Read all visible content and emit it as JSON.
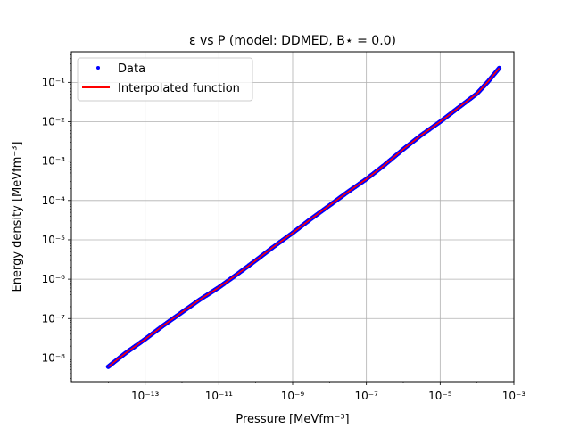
{
  "chart_data": {
    "type": "line",
    "title": "ε vs P (model: DDMED, B⋆ = 0.0)",
    "xlabel": "Pressure [MeVfm⁻³]",
    "ylabel": "Energy density [MeVfm⁻³]",
    "xscale": "log",
    "yscale": "log",
    "xlim": [
      1e-15,
      0.001
    ],
    "ylim": [
      2.5e-09,
      0.6
    ],
    "xticks": [
      {
        "value": 1e-13,
        "label": "10⁻¹³"
      },
      {
        "value": 1e-11,
        "label": "10⁻¹¹"
      },
      {
        "value": 1e-09,
        "label": "10⁻⁹"
      },
      {
        "value": 1e-07,
        "label": "10⁻⁷"
      },
      {
        "value": 1e-05,
        "label": "10⁻⁵"
      },
      {
        "value": 0.001,
        "label": "10⁻³"
      }
    ],
    "yticks": [
      {
        "value": 1e-08,
        "label": "10⁻⁸"
      },
      {
        "value": 1e-07,
        "label": "10⁻⁷"
      },
      {
        "value": 1e-06,
        "label": "10⁻⁶"
      },
      {
        "value": 1e-05,
        "label": "10⁻⁵"
      },
      {
        "value": 0.0001,
        "label": "10⁻⁴"
      },
      {
        "value": 0.001,
        "label": "10⁻³"
      },
      {
        "value": 0.01,
        "label": "10⁻²"
      },
      {
        "value": 0.1,
        "label": "10⁻¹"
      }
    ],
    "grid": true,
    "legend": {
      "placement": "upper-left"
    },
    "series": [
      {
        "name": "Data",
        "style": "points",
        "color": "#0000ff",
        "x": [
          1e-14,
          3e-14,
          1e-13,
          3e-13,
          1e-12,
          3e-12,
          1e-11,
          3e-11,
          1e-10,
          3e-10,
          1e-09,
          3e-09,
          1e-08,
          3e-08,
          1e-07,
          3e-07,
          1e-06,
          3e-06,
          1e-05,
          3e-05,
          0.0001,
          0.0002,
          0.0004
        ],
        "y": [
          6e-09,
          1.35e-08,
          3e-08,
          6.5e-08,
          1.45e-07,
          3e-07,
          6.2e-07,
          1.3e-06,
          3e-06,
          6.6e-06,
          1.5e-05,
          3.3e-05,
          7.5e-05,
          0.00016,
          0.00035,
          0.00078,
          0.002,
          0.0045,
          0.01,
          0.022,
          0.052,
          0.105,
          0.23
        ]
      },
      {
        "name": "Interpolated function",
        "style": "line",
        "color": "#ff0000",
        "x": [
          1e-14,
          3e-14,
          1e-13,
          3e-13,
          1e-12,
          3e-12,
          1e-11,
          3e-11,
          1e-10,
          3e-10,
          1e-09,
          3e-09,
          1e-08,
          3e-08,
          1e-07,
          3e-07,
          1e-06,
          3e-06,
          1e-05,
          3e-05,
          0.0001,
          0.0002,
          0.0004
        ],
        "y": [
          6e-09,
          1.35e-08,
          3e-08,
          6.5e-08,
          1.45e-07,
          3e-07,
          6.2e-07,
          1.3e-06,
          3e-06,
          6.6e-06,
          1.5e-05,
          3.3e-05,
          7.5e-05,
          0.00016,
          0.00035,
          0.00078,
          0.002,
          0.0045,
          0.01,
          0.022,
          0.052,
          0.105,
          0.23
        ]
      }
    ]
  }
}
